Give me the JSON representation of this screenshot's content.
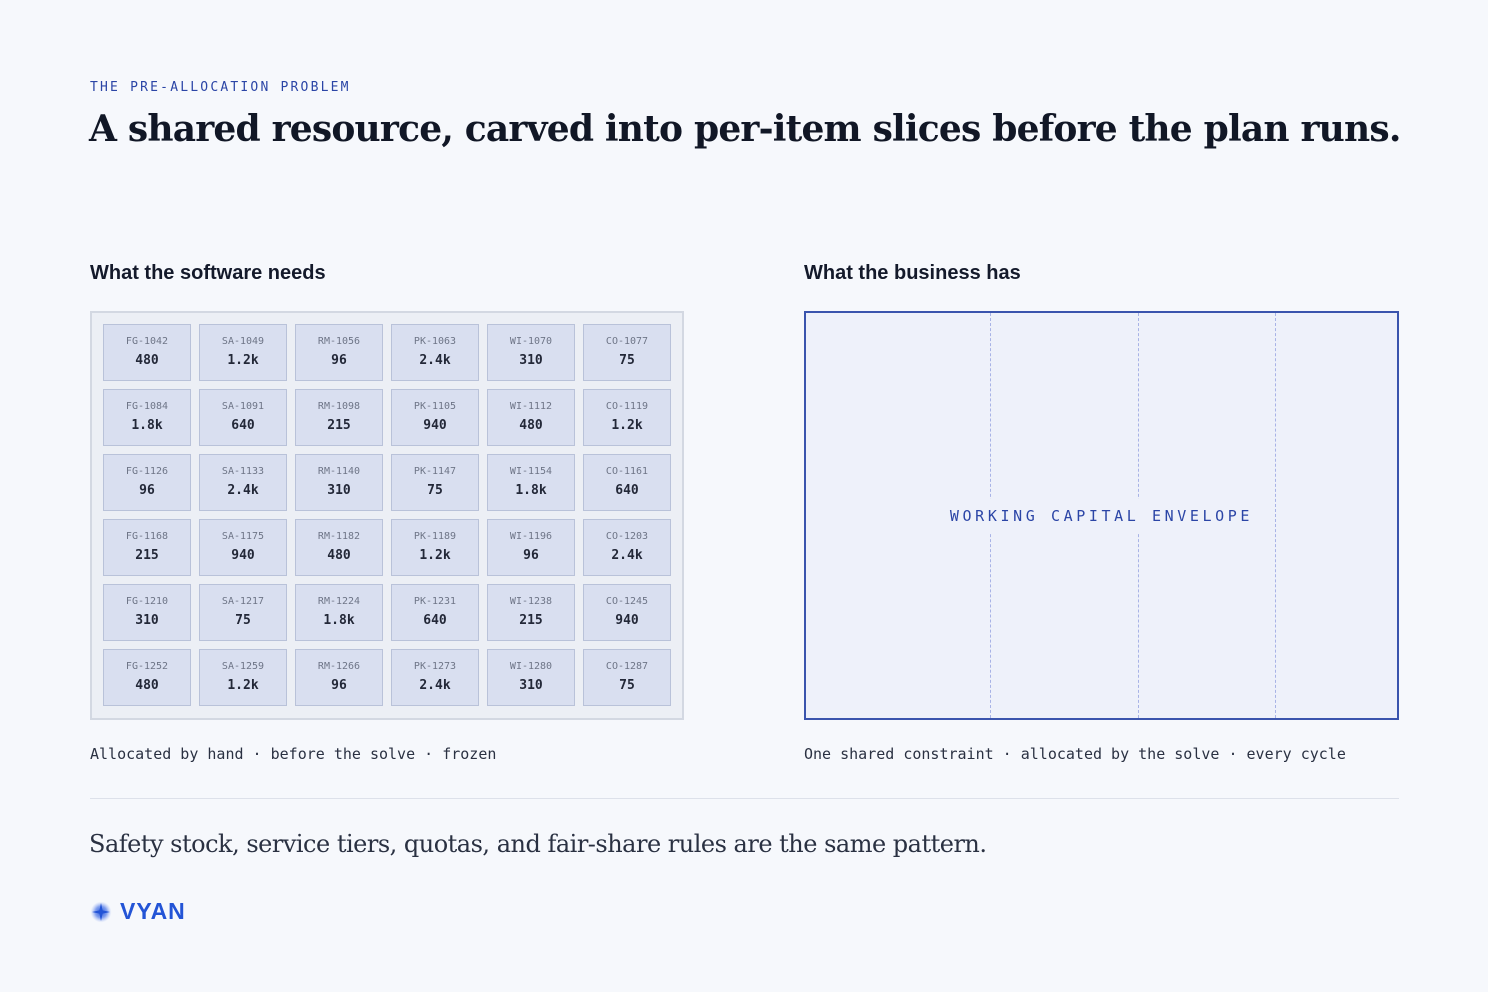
{
  "eyebrow": "THE PRE-ALLOCATION PROBLEM",
  "headline": "A shared resource, carved into per-item slices before the plan runs.",
  "left": {
    "title": "What the software needs",
    "caption": "Allocated by hand · before the solve · frozen",
    "rows": [
      [
        {
          "code": "FG-1042",
          "value": "480"
        },
        {
          "code": "SA-1049",
          "value": "1.2k"
        },
        {
          "code": "RM-1056",
          "value": "96"
        },
        {
          "code": "PK-1063",
          "value": "2.4k"
        },
        {
          "code": "WI-1070",
          "value": "310"
        },
        {
          "code": "CO-1077",
          "value": "75"
        }
      ],
      [
        {
          "code": "FG-1084",
          "value": "1.8k"
        },
        {
          "code": "SA-1091",
          "value": "640"
        },
        {
          "code": "RM-1098",
          "value": "215"
        },
        {
          "code": "PK-1105",
          "value": "940"
        },
        {
          "code": "WI-1112",
          "value": "480"
        },
        {
          "code": "CO-1119",
          "value": "1.2k"
        }
      ],
      [
        {
          "code": "FG-1126",
          "value": "96"
        },
        {
          "code": "SA-1133",
          "value": "2.4k"
        },
        {
          "code": "RM-1140",
          "value": "310"
        },
        {
          "code": "PK-1147",
          "value": "75"
        },
        {
          "code": "WI-1154",
          "value": "1.8k"
        },
        {
          "code": "CO-1161",
          "value": "640"
        }
      ],
      [
        {
          "code": "FG-1168",
          "value": "215"
        },
        {
          "code": "SA-1175",
          "value": "940"
        },
        {
          "code": "RM-1182",
          "value": "480"
        },
        {
          "code": "PK-1189",
          "value": "1.2k"
        },
        {
          "code": "WI-1196",
          "value": "96"
        },
        {
          "code": "CO-1203",
          "value": "2.4k"
        }
      ],
      [
        {
          "code": "FG-1210",
          "value": "310"
        },
        {
          "code": "SA-1217",
          "value": "75"
        },
        {
          "code": "RM-1224",
          "value": "1.8k"
        },
        {
          "code": "PK-1231",
          "value": "640"
        },
        {
          "code": "WI-1238",
          "value": "215"
        },
        {
          "code": "CO-1245",
          "value": "940"
        }
      ],
      [
        {
          "code": "FG-1252",
          "value": "480"
        },
        {
          "code": "SA-1259",
          "value": "1.2k"
        },
        {
          "code": "RM-1266",
          "value": "96"
        },
        {
          "code": "PK-1273",
          "value": "2.4k"
        },
        {
          "code": "WI-1280",
          "value": "310"
        },
        {
          "code": "CO-1287",
          "value": "75"
        }
      ]
    ]
  },
  "right": {
    "title": "What the business has",
    "envelope_label": "WORKING CAPITAL ENVELOPE",
    "caption": "One shared constraint · allocated by the solve · every cycle"
  },
  "footnote": "Safety stock, service tiers, quotas, and fair-share rules are the same pattern.",
  "brand": {
    "name": "VYAN",
    "icon": "sparkle-logo-icon",
    "color": "#2354d6"
  },
  "colors": {
    "accent": "#2b45a6",
    "cell_fill": "#d9dff0",
    "envelope_border": "#3a54ad"
  }
}
